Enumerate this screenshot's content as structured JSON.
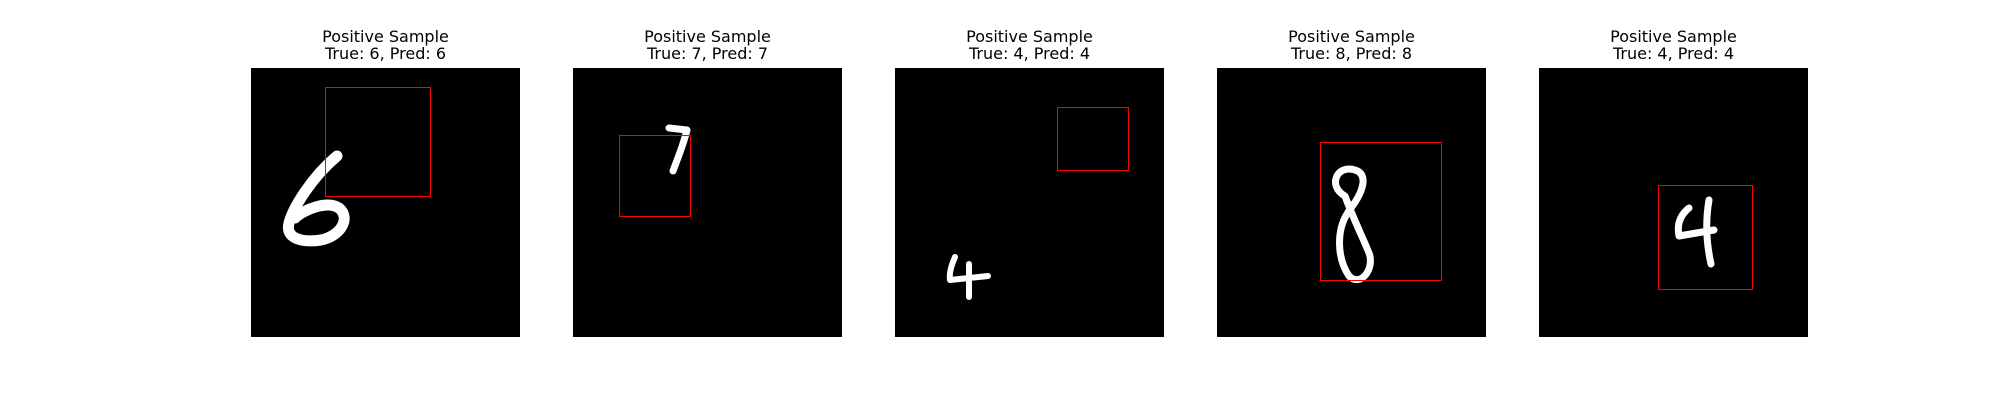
{
  "samples": [
    {
      "heading": "Positive Sample",
      "caption": "True: 6, Pred: 6",
      "digit": "6"
    },
    {
      "heading": "Positive Sample",
      "caption": "True: 7, Pred: 7",
      "digit": "7"
    },
    {
      "heading": "Positive Sample",
      "caption": "True: 4, Pred: 4",
      "digit": "4"
    },
    {
      "heading": "Positive Sample",
      "caption": "True: 8, Pred: 8",
      "digit": "8"
    },
    {
      "heading": "Positive Sample",
      "caption": "True: 4, Pred: 4",
      "digit": "4"
    }
  ],
  "colors": {
    "background": "#000000",
    "digit": "#ffffff",
    "box": "#ff0000"
  }
}
